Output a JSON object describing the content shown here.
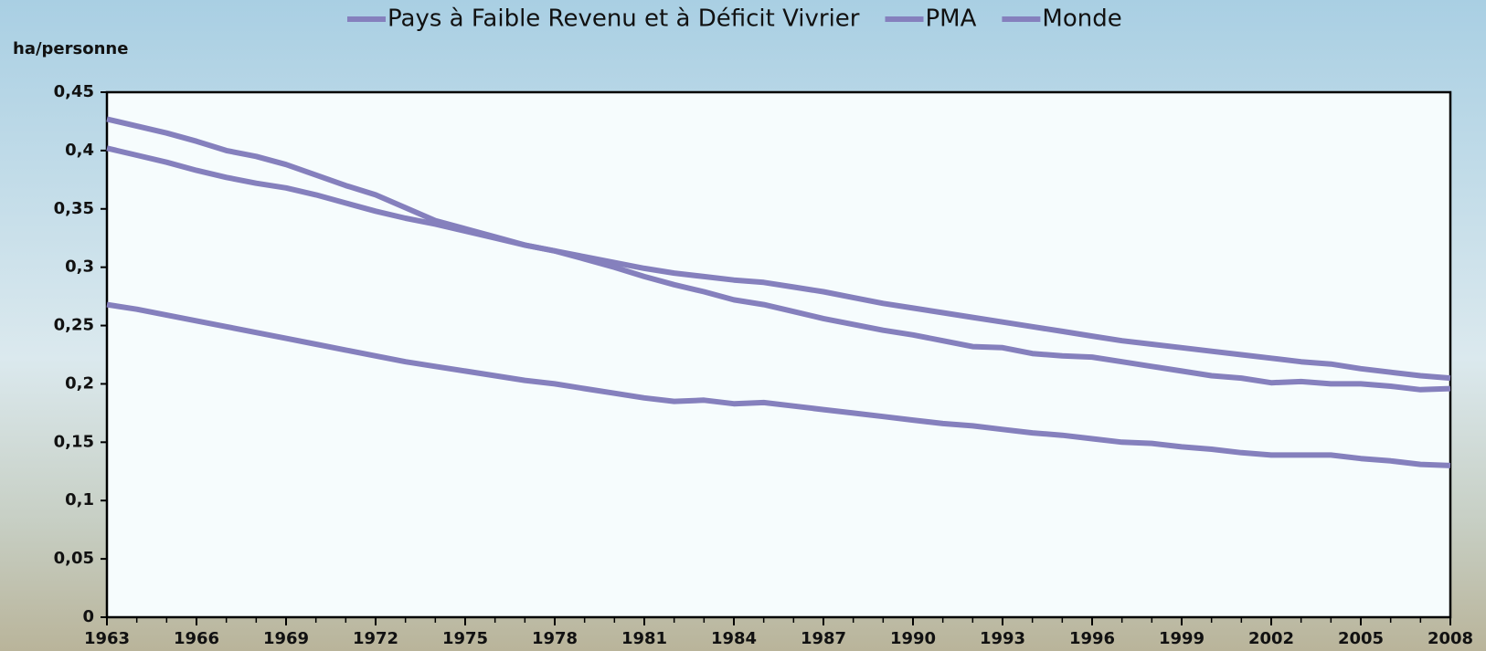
{
  "chart_data": {
    "type": "line",
    "y_label": "ha/personne",
    "x": [
      1963,
      1964,
      1965,
      1966,
      1967,
      1968,
      1969,
      1970,
      1971,
      1972,
      1973,
      1974,
      1975,
      1976,
      1977,
      1978,
      1979,
      1980,
      1981,
      1982,
      1983,
      1984,
      1985,
      1986,
      1987,
      1988,
      1989,
      1990,
      1991,
      1992,
      1993,
      1994,
      1995,
      1996,
      1997,
      1998,
      1999,
      2000,
      2001,
      2002,
      2003,
      2004,
      2005,
      2006,
      2007,
      2008
    ],
    "xlim": [
      1963,
      2008
    ],
    "xticks": [
      1963,
      1966,
      1969,
      1972,
      1975,
      1978,
      1981,
      1984,
      1987,
      1990,
      1993,
      1996,
      1999,
      2002,
      2005,
      2008
    ],
    "ylim": [
      0,
      0.45
    ],
    "yticks": [
      0,
      {
        "value": 0.05,
        "label": "0,05"
      },
      {
        "value": 0.1,
        "label": "0,1"
      },
      {
        "value": 0.15,
        "label": "0,15"
      },
      {
        "value": 0.2,
        "label": "0,2"
      },
      {
        "value": 0.25,
        "label": "0,25"
      },
      {
        "value": 0.3,
        "label": "0,3"
      },
      {
        "value": 0.35,
        "label": "0,35"
      },
      {
        "value": 0.4,
        "label": "0,4"
      },
      {
        "value": 0.45,
        "label": "0,45"
      }
    ],
    "series": [
      {
        "name": "Pays à Faible Revenu et à Déficit Vivrier",
        "color": "#8580bd",
        "values": [
          0.268,
          0.264,
          0.259,
          0.254,
          0.249,
          0.244,
          0.239,
          0.234,
          0.229,
          0.224,
          0.219,
          0.215,
          0.211,
          0.207,
          0.203,
          0.2,
          0.196,
          0.192,
          0.188,
          0.185,
          0.186,
          0.183,
          0.184,
          0.181,
          0.178,
          0.175,
          0.172,
          0.169,
          0.166,
          0.164,
          0.161,
          0.158,
          0.156,
          0.153,
          0.15,
          0.149,
          0.146,
          0.144,
          0.141,
          0.139,
          0.139,
          0.139,
          0.136,
          0.134,
          0.131,
          0.13
        ]
      },
      {
        "name": "PMA",
        "color": "#8580bd",
        "values": [
          0.402,
          0.396,
          0.39,
          0.383,
          0.377,
          0.372,
          0.368,
          0.362,
          0.355,
          0.348,
          0.342,
          0.337,
          0.331,
          0.325,
          0.319,
          0.314,
          0.309,
          0.304,
          0.299,
          0.295,
          0.292,
          0.289,
          0.287,
          0.283,
          0.279,
          0.274,
          0.269,
          0.265,
          0.261,
          0.257,
          0.253,
          0.249,
          0.245,
          0.241,
          0.237,
          0.234,
          0.231,
          0.228,
          0.225,
          0.222,
          0.219,
          0.217,
          0.213,
          0.21,
          0.207,
          0.205
        ]
      },
      {
        "name": "Monde",
        "color": "#8580bd",
        "values": [
          0.427,
          0.421,
          0.415,
          0.408,
          0.4,
          0.395,
          0.388,
          0.379,
          0.37,
          0.362,
          0.351,
          0.34,
          0.333,
          0.326,
          0.319,
          0.314,
          0.307,
          0.3,
          0.292,
          0.285,
          0.279,
          0.272,
          0.268,
          0.262,
          0.256,
          0.251,
          0.246,
          0.242,
          0.237,
          0.232,
          0.231,
          0.226,
          0.224,
          0.223,
          0.219,
          0.215,
          0.211,
          0.207,
          0.205,
          0.201,
          0.202,
          0.2,
          0.2,
          0.198,
          0.195,
          0.196
        ]
      }
    ]
  }
}
